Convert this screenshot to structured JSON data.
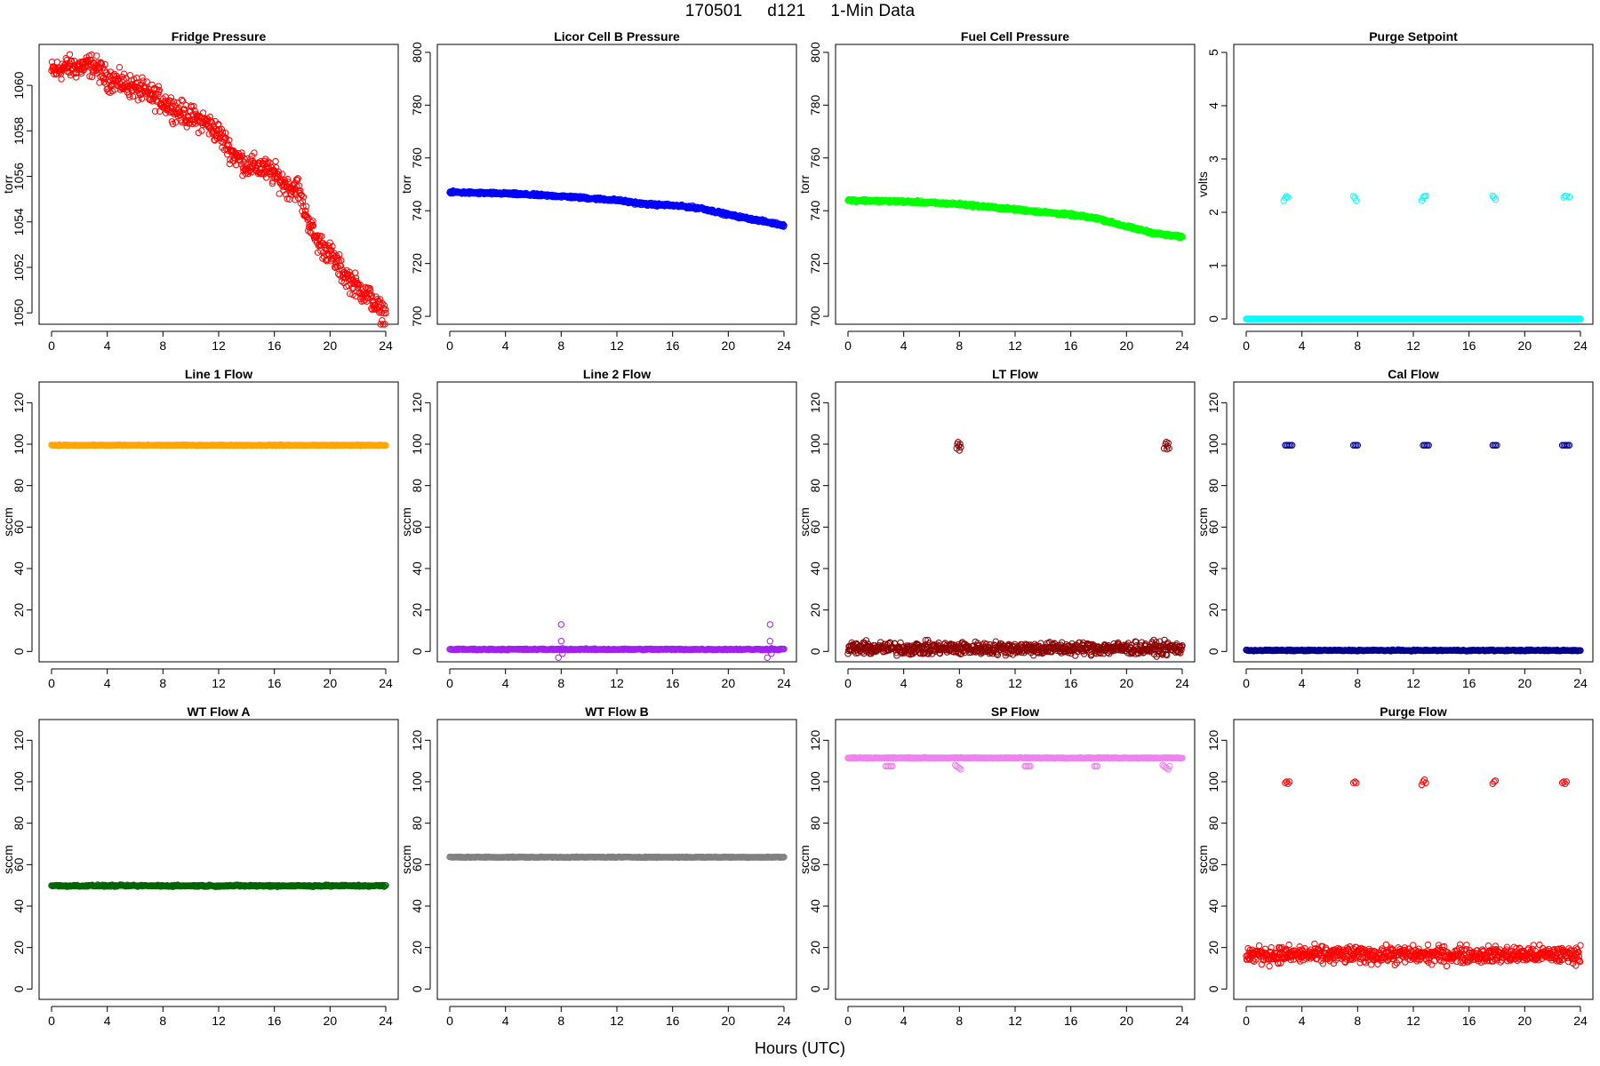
{
  "figure": {
    "title_parts": [
      "170501",
      "d121",
      "1-Min Data"
    ],
    "xlabel": "Hours (UTC)"
  },
  "chart_data": [
    {
      "type": "scatter",
      "title": "Fridge Pressure",
      "ylabel": "torr",
      "xlim": [
        0,
        24
      ],
      "ylim": [
        1049.5,
        1061.8
      ],
      "xticks": [
        0,
        4,
        8,
        12,
        16,
        20,
        24
      ],
      "yticks": [
        1050,
        1052,
        1054,
        1056,
        1058,
        1060
      ],
      "color": "#ff0000",
      "marker": "open-circle",
      "series": [
        {
          "kind": "trend",
          "x": [
            0,
            1,
            2,
            3,
            4,
            5,
            6,
            7,
            8,
            9,
            10,
            11,
            12,
            13,
            14,
            15,
            16,
            17,
            17.7,
            18,
            19,
            20,
            21,
            22,
            23,
            23.5,
            24
          ],
          "y": [
            1060.6,
            1060.8,
            1060.8,
            1060.9,
            1060.3,
            1060.1,
            1059.9,
            1059.6,
            1059.3,
            1058.9,
            1058.6,
            1058.4,
            1057.9,
            1057.0,
            1056.5,
            1056.4,
            1056.1,
            1055.5,
            1055.5,
            1054.8,
            1053.2,
            1052.6,
            1051.7,
            1051.1,
            1050.6,
            1050.1,
            1050.0
          ],
          "noise": 0.5
        }
      ]
    },
    {
      "type": "scatter",
      "title": "Licor Cell B Pressure",
      "ylabel": "torr",
      "xlim": [
        0,
        24
      ],
      "ylim": [
        697,
        803
      ],
      "xticks": [
        0,
        4,
        8,
        12,
        16,
        20,
        24
      ],
      "yticks": [
        700,
        720,
        740,
        760,
        780,
        800
      ],
      "color": "#0000ff",
      "marker": "open-circle",
      "series": [
        {
          "kind": "trend",
          "x": [
            0,
            4,
            8,
            12,
            14,
            16,
            18,
            20,
            22,
            24
          ],
          "y": [
            747,
            746.5,
            745.5,
            744,
            742.5,
            742,
            741,
            738.5,
            736.5,
            734.5
          ],
          "noise": 0.5
        }
      ]
    },
    {
      "type": "scatter",
      "title": "Fuel Cell Pressure",
      "ylabel": "torr",
      "xlim": [
        0,
        24
      ],
      "ylim": [
        697,
        803
      ],
      "xticks": [
        0,
        4,
        8,
        12,
        16,
        20,
        24
      ],
      "yticks": [
        700,
        720,
        740,
        760,
        780,
        800
      ],
      "color": "#00ff00",
      "marker": "open-circle",
      "series": [
        {
          "kind": "trend",
          "x": [
            0,
            4,
            8,
            12,
            16,
            18,
            20,
            22,
            24
          ],
          "y": [
            744,
            743.5,
            742.5,
            740.5,
            738.5,
            737,
            734,
            731.5,
            730
          ],
          "noise": 0.5
        }
      ]
    },
    {
      "type": "scatter",
      "title": "Purge Setpoint",
      "ylabel": "volts",
      "xlim": [
        0,
        24
      ],
      "ylim": [
        -0.1,
        5.15
      ],
      "xticks": [
        0,
        4,
        8,
        12,
        16,
        20,
        24
      ],
      "yticks": [
        0,
        1,
        2,
        3,
        4,
        5
      ],
      "color": "#00ffff",
      "marker": "open-circle",
      "series": [
        {
          "kind": "flat",
          "x0": 0,
          "x1": 24,
          "y": 0,
          "noise": 0
        },
        {
          "kind": "points",
          "x": [
            2.7,
            2.8,
            2.9,
            3.0,
            7.7,
            7.8,
            7.9,
            12.6,
            12.7,
            12.8,
            12.9,
            17.7,
            17.8,
            17.9,
            22.8,
            22.9,
            23.0,
            23.2
          ],
          "y": [
            2.22,
            2.27,
            2.3,
            2.28,
            2.3,
            2.27,
            2.22,
            2.22,
            2.28,
            2.3,
            2.31,
            2.31,
            2.28,
            2.24,
            2.28,
            2.31,
            2.3,
            2.29
          ]
        }
      ]
    },
    {
      "type": "scatter",
      "title": "Line 1 Flow",
      "ylabel": "sccm",
      "xlim": [
        0,
        24
      ],
      "ylim": [
        -5,
        130
      ],
      "xticks": [
        0,
        4,
        8,
        12,
        16,
        20,
        24
      ],
      "yticks": [
        0,
        20,
        40,
        60,
        80,
        100,
        120
      ],
      "color": "#ffa500",
      "marker": "open-circle",
      "series": [
        {
          "kind": "flat",
          "x0": 0,
          "x1": 24,
          "y": 99.5,
          "noise": 0.2
        }
      ]
    },
    {
      "type": "scatter",
      "title": "Line 2 Flow",
      "ylabel": "sccm",
      "xlim": [
        0,
        24
      ],
      "ylim": [
        -5,
        130
      ],
      "xticks": [
        0,
        4,
        8,
        12,
        16,
        20,
        24
      ],
      "yticks": [
        0,
        20,
        40,
        60,
        80,
        100,
        120
      ],
      "color": "#a020f0",
      "marker": "open-circle",
      "series": [
        {
          "kind": "flat",
          "x0": 0,
          "x1": 24,
          "y": 1,
          "noise": 0.3
        },
        {
          "kind": "points",
          "x": [
            7.8,
            8.0,
            8.0,
            8.1,
            8.1,
            22.8,
            23.0,
            23.0,
            23.1,
            23.1
          ],
          "y": [
            -3,
            13,
            5,
            1.5,
            -1,
            -3,
            13,
            5,
            1.5,
            -1
          ]
        }
      ]
    },
    {
      "type": "scatter",
      "title": "LT Flow",
      "ylabel": "sccm",
      "xlim": [
        0,
        24
      ],
      "ylim": [
        -5,
        130
      ],
      "xticks": [
        0,
        4,
        8,
        12,
        16,
        20,
        24
      ],
      "yticks": [
        0,
        20,
        40,
        60,
        80,
        100,
        120
      ],
      "color": "#8b0000",
      "marker": "open-circle",
      "series": [
        {
          "kind": "flat",
          "x0": 0,
          "x1": 24,
          "y": 1.5,
          "noise": 3
        },
        {
          "kind": "points",
          "x": [
            7.8,
            7.85,
            7.9,
            7.95,
            8.0,
            8.05,
            8.1,
            22.7,
            22.8,
            22.85,
            22.9,
            22.95,
            23.0,
            23.05
          ],
          "y": [
            98,
            100,
            101,
            99,
            97,
            100,
            98.5,
            98,
            100,
            101,
            97.5,
            99,
            100.5,
            98
          ]
        }
      ]
    },
    {
      "type": "scatter",
      "title": "Cal Flow",
      "ylabel": "sccm",
      "xlim": [
        0,
        24
      ],
      "ylim": [
        -5,
        130
      ],
      "xticks": [
        0,
        4,
        8,
        12,
        16,
        20,
        24
      ],
      "yticks": [
        0,
        20,
        40,
        60,
        80,
        100,
        120
      ],
      "color": "#00008b",
      "marker": "open-circle",
      "series": [
        {
          "kind": "flat",
          "x0": 0,
          "x1": 24,
          "y": 0.5,
          "noise": 0.3
        },
        {
          "kind": "points",
          "x": [
            2.8,
            2.9,
            3.0,
            3.1,
            3.2,
            3.3,
            7.7,
            7.8,
            7.9,
            8.0,
            12.7,
            12.8,
            12.9,
            13.0,
            13.1,
            17.7,
            17.8,
            17.9,
            18.0,
            22.7,
            22.8,
            22.9,
            23.0,
            23.1,
            23.2
          ],
          "y": [
            99.5,
            99.5,
            99.5,
            99.5,
            99.5,
            99.5,
            99.5,
            99.5,
            99.5,
            99.5,
            99.5,
            99.5,
            99.5,
            99.5,
            99.5,
            99.5,
            99.5,
            99.5,
            99.5,
            99.5,
            99.5,
            99.5,
            99.5,
            99.5,
            99.5
          ]
        }
      ]
    },
    {
      "type": "scatter",
      "title": "WT Flow A",
      "ylabel": "sccm",
      "xlim": [
        0,
        24
      ],
      "ylim": [
        -5,
        130
      ],
      "xticks": [
        0,
        4,
        8,
        12,
        16,
        20,
        24
      ],
      "yticks": [
        0,
        20,
        40,
        60,
        80,
        100,
        120
      ],
      "color": "#006400",
      "marker": "open-circle",
      "series": [
        {
          "kind": "flat",
          "x0": 0,
          "x1": 24,
          "y": 49.8,
          "noise": 0.4
        }
      ]
    },
    {
      "type": "scatter",
      "title": "WT Flow B",
      "ylabel": "sccm",
      "xlim": [
        0,
        24
      ],
      "ylim": [
        -5,
        130
      ],
      "xticks": [
        0,
        4,
        8,
        12,
        16,
        20,
        24
      ],
      "yticks": [
        0,
        20,
        40,
        60,
        80,
        100,
        120
      ],
      "color": "#808080",
      "marker": "open-circle",
      "series": [
        {
          "kind": "flat",
          "x0": 0,
          "x1": 24,
          "y": 63.6,
          "noise": 0.2
        }
      ]
    },
    {
      "type": "scatter",
      "title": "SP Flow",
      "ylabel": "sccm",
      "xlim": [
        0,
        24
      ],
      "ylim": [
        -5,
        130
      ],
      "xticks": [
        0,
        4,
        8,
        12,
        16,
        20,
        24
      ],
      "yticks": [
        0,
        20,
        40,
        60,
        80,
        100,
        120
      ],
      "color": "#ee82ee",
      "marker": "open-circle",
      "series": [
        {
          "kind": "flat",
          "x0": 0,
          "x1": 24,
          "y": 111.5,
          "noise": 0.2
        },
        {
          "kind": "points",
          "x": [
            2.7,
            2.8,
            2.9,
            3.0,
            3.1,
            3.2,
            7.7,
            7.8,
            7.9,
            8.0,
            8.1,
            12.7,
            12.8,
            12.9,
            13.0,
            13.1,
            17.7,
            17.8,
            17.9,
            22.6,
            22.7,
            22.8,
            22.9,
            23.0,
            23.1
          ],
          "y": [
            107.5,
            107.5,
            107.5,
            107.5,
            107.5,
            107.5,
            108,
            107.5,
            107,
            106.5,
            106,
            107.5,
            107.5,
            107.5,
            107.5,
            107.5,
            107.5,
            107.5,
            107.5,
            108,
            107.5,
            107,
            106.5,
            106,
            107.5
          ]
        }
      ]
    },
    {
      "type": "scatter",
      "title": "Purge Flow",
      "ylabel": "sccm",
      "xlim": [
        0,
        24
      ],
      "ylim": [
        -5,
        130
      ],
      "xticks": [
        0,
        4,
        8,
        12,
        16,
        20,
        24
      ],
      "yticks": [
        0,
        20,
        40,
        60,
        80,
        100,
        120
      ],
      "color": "#ff0000",
      "marker": "open-circle",
      "series": [
        {
          "kind": "flat",
          "x0": 0,
          "x1": 24,
          "y": 16.5,
          "noise": 4
        },
        {
          "kind": "points",
          "x": [
            2.8,
            2.9,
            3.0,
            3.1,
            7.7,
            7.8,
            7.9,
            12.6,
            12.7,
            12.8,
            12.9,
            17.7,
            17.8,
            17.9,
            22.7,
            22.8,
            22.9,
            23.0
          ],
          "y": [
            99.5,
            100,
            99,
            100,
            99.5,
            100,
            99.5,
            98.5,
            100,
            101,
            99.5,
            99,
            100,
            100.5,
            99.5,
            100,
            99,
            100
          ]
        }
      ]
    }
  ]
}
